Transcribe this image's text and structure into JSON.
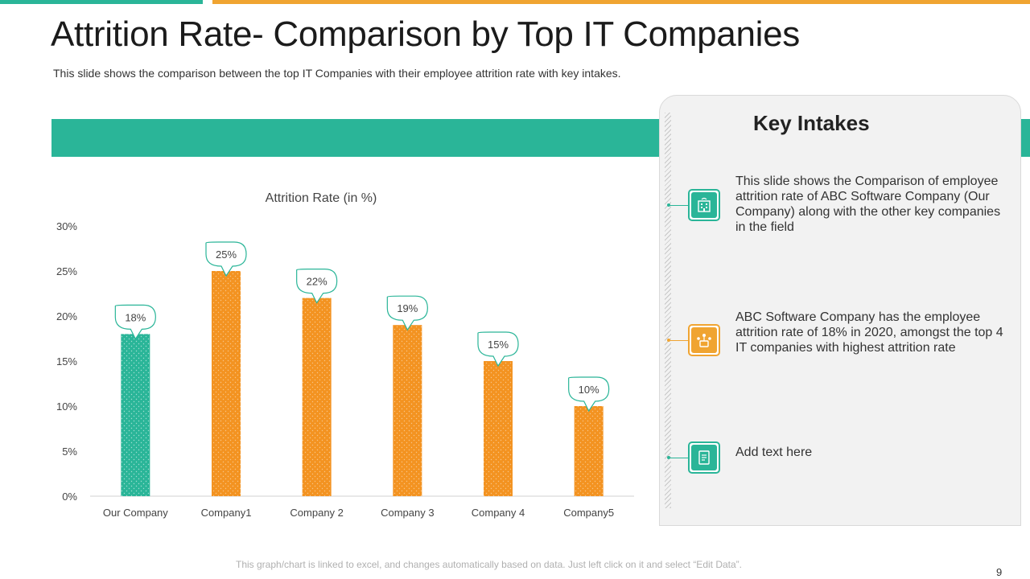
{
  "slide": {
    "title": "Attrition Rate- Comparison by Top IT Companies",
    "subtitle": "This slide shows the comparison between the top IT Companies with their employee attrition rate with key intakes.",
    "footer_note": "This graph/chart is linked to excel, and changes automatically based on data. Just left click on it and select “Edit Data”.",
    "page_number": "9"
  },
  "colors": {
    "teal": "#2ab598",
    "orange": "#f0a431",
    "bar_orange": "#f39321"
  },
  "chart_data": {
    "type": "bar",
    "title": "Attrition Rate (in %)",
    "xlabel": "",
    "ylabel": "",
    "categories": [
      "Our Company",
      "Company1",
      "Company 2",
      "Company 3",
      "Company 4",
      "Company5"
    ],
    "values": [
      18,
      25,
      22,
      19,
      15,
      10
    ],
    "data_labels": [
      "18%",
      "25%",
      "22%",
      "19%",
      "15%",
      "10%"
    ],
    "highlight_index": 0,
    "ylim": [
      0,
      30
    ],
    "y_ticks": [
      0,
      5,
      10,
      15,
      20,
      25,
      30
    ],
    "y_tick_labels": [
      "0%",
      "5%",
      "10%",
      "15%",
      "20%",
      "25%",
      "30%"
    ],
    "grid": false,
    "legend": "none"
  },
  "key_intakes": {
    "title": "Key Intakes",
    "items": [
      {
        "icon": "office-building-icon",
        "text": "This slide shows the Comparison of employee attrition rate of ABC Software Company (Our Company) along with the other key companies in the field"
      },
      {
        "icon": "team-network-icon",
        "text": "ABC Software Company has the employee attrition rate of 18% in 2020, amongst the top 4 IT companies with highest attrition rate"
      },
      {
        "icon": "document-icon",
        "text": "Add text here"
      }
    ]
  }
}
